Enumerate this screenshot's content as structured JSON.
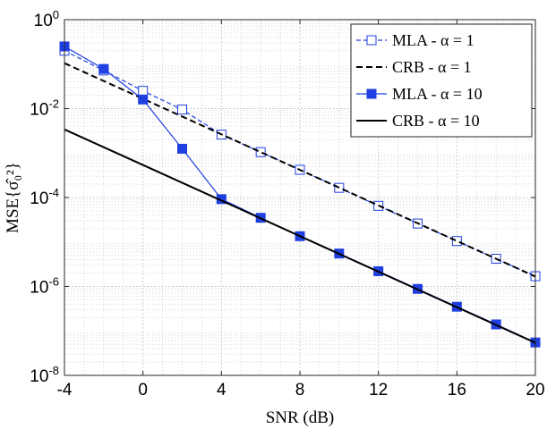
{
  "chart_data": {
    "type": "line",
    "xlabel": "SNR (dB)",
    "ylabel": "MSE{σ̂₀²}",
    "xlim": [
      -4,
      20
    ],
    "ylim": [
      1e-08,
      1
    ],
    "yscale": "log",
    "xticks": [
      -4,
      0,
      4,
      8,
      12,
      16,
      20
    ],
    "xtick_labels": [
      "-4",
      "0",
      "4",
      "8",
      "12",
      "16",
      "20"
    ],
    "yticks": [
      {
        "base": "10",
        "exp": "-8",
        "value": 1e-08
      },
      {
        "base": "10",
        "exp": "-6",
        "value": 1e-06
      },
      {
        "base": "10",
        "exp": "-4",
        "value": 0.0001
      },
      {
        "base": "10",
        "exp": "-2",
        "value": 0.01
      },
      {
        "base": "10",
        "exp": "0",
        "value": 1
      }
    ],
    "grid": true,
    "minor_grid": true,
    "legend_position": "top-right",
    "series": [
      {
        "name": "MLA - α = 1",
        "color": "#1f3fe0",
        "line": "dashed",
        "marker": "open-square",
        "x": [
          -4,
          -2,
          0,
          2,
          4,
          6,
          8,
          10,
          12,
          14,
          16,
          18,
          20
        ],
        "y": [
          0.2,
          0.072,
          0.025,
          0.0095,
          0.0026,
          0.00105,
          0.00042,
          0.000165,
          6.5e-05,
          2.6e-05,
          1.05e-05,
          4.2e-06,
          1.7e-06
        ]
      },
      {
        "name": "CRB - α = 1",
        "color": "#000000",
        "line": "dashed",
        "marker": "none",
        "x": [
          -4,
          20
        ],
        "y": [
          0.105,
          1.67e-06
        ]
      },
      {
        "name": "MLA - α = 10",
        "color": "#1f3fe0",
        "line": "solid",
        "marker": "filled-square",
        "x": [
          -4,
          -2,
          0,
          2,
          4,
          6,
          8,
          10,
          12,
          14,
          16,
          18,
          20
        ],
        "y": [
          0.25,
          0.078,
          0.016,
          0.00125,
          9.2e-05,
          3.5e-05,
          1.35e-05,
          5.5e-06,
          2.2e-06,
          8.8e-07,
          3.5e-07,
          1.4e-07,
          5.5e-08
        ]
      },
      {
        "name": "CRB - α = 10",
        "color": "#000000",
        "line": "solid",
        "marker": "none",
        "x": [
          -4,
          20
        ],
        "y": [
          0.0034,
          5.4e-08
        ]
      }
    ]
  }
}
